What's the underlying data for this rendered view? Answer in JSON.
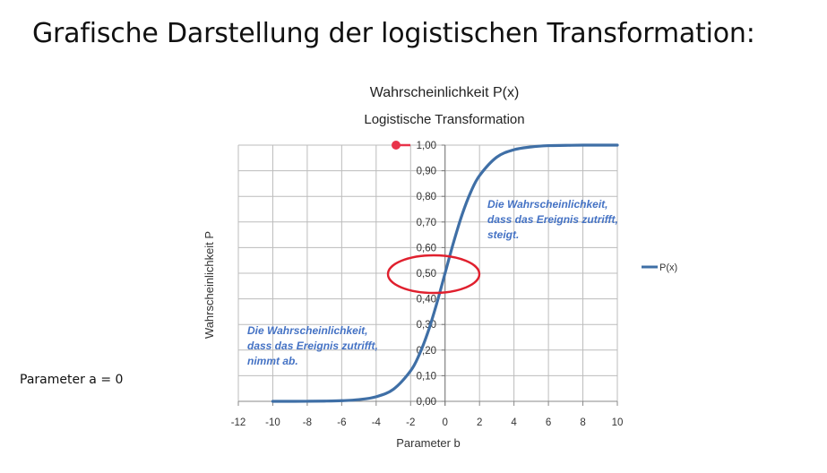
{
  "slide": {
    "title": "Grafische Darstellung der logistischen Transformation:",
    "parameter_note": "Parameter a = 0"
  },
  "chart_data": {
    "type": "line",
    "title": "Wahrscheinlichkeit P(x)",
    "subtitle": "Logistische Transformation",
    "xlabel": "Parameter b",
    "ylabel": "Wahrscheinlichkeit P",
    "xlim": [
      -12,
      10
    ],
    "ylim": [
      0,
      1
    ],
    "x_ticks": [
      "-12",
      "-10",
      "-8",
      "-6",
      "-4",
      "-2",
      "0",
      "2",
      "4",
      "6",
      "8",
      "10"
    ],
    "y_ticks": [
      "0,00",
      "0,10",
      "0,20",
      "0,30",
      "0,40",
      "0,50",
      "0,60",
      "0,70",
      "0,80",
      "0,90",
      "1,00"
    ],
    "grid": true,
    "legend": "right",
    "series": [
      {
        "name": "P(x)",
        "color": "#3f6fa6",
        "x": [
          -10,
          -9,
          -8,
          -7,
          -6,
          -5,
          -4,
          -3,
          -2,
          -1.5,
          -1,
          -0.5,
          0,
          0.5,
          1,
          1.5,
          2,
          3,
          4,
          5,
          6,
          7,
          8,
          9,
          10
        ],
        "y": [
          0.0,
          0.0001,
          0.0003,
          0.0009,
          0.0025,
          0.0067,
          0.018,
          0.047,
          0.119,
          0.182,
          0.269,
          0.378,
          0.5,
          0.622,
          0.731,
          0.818,
          0.881,
          0.953,
          0.982,
          0.993,
          0.998,
          0.999,
          1.0,
          1.0,
          1.0
        ]
      }
    ],
    "annotations": [
      {
        "lines": [
          "Die Wahrscheinlichkeit,",
          "dass das Ereignis zutrifft,",
          "steigt."
        ],
        "color": "#4472c4"
      },
      {
        "lines": [
          "Die Wahrscheinlichkeit,",
          "dass das Ereignis zutrifft,",
          "nimmt ab."
        ],
        "color": "#4472c4"
      }
    ],
    "highlights": {
      "ellipse_color": "#e0202e",
      "dot_color": "#e8334a"
    }
  }
}
